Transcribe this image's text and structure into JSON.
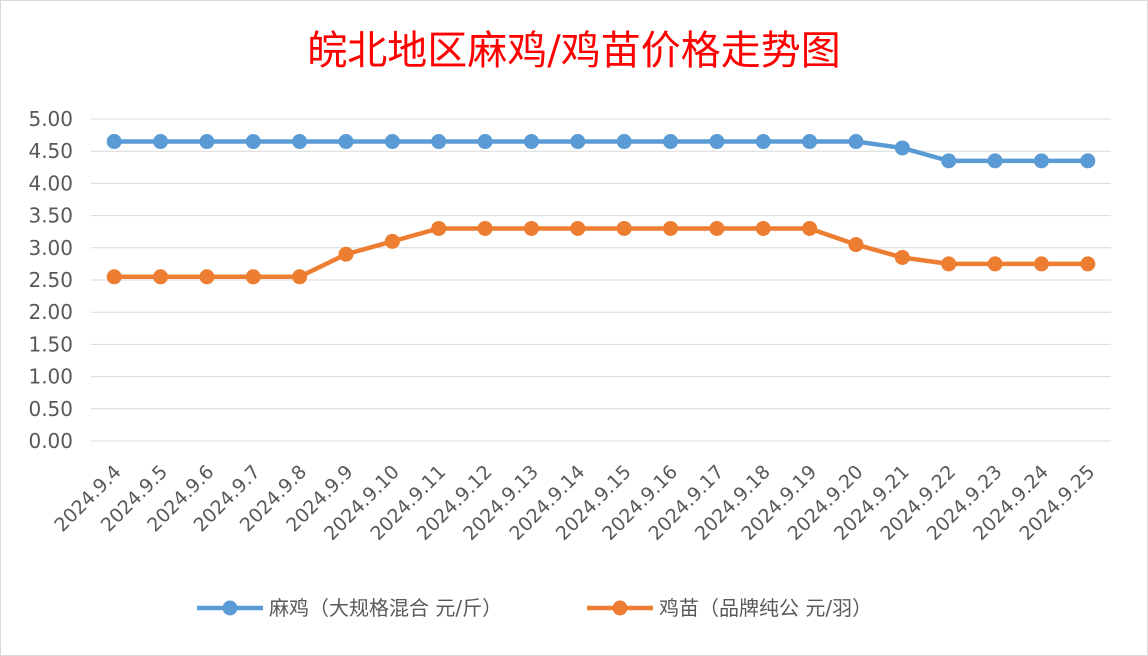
{
  "chart_data": {
    "type": "line",
    "title": "皖北地区麻鸡/鸡苗价格走势图",
    "categories": [
      "2024.9.4",
      "2024.9.5",
      "2024.9.6",
      "2024.9.7",
      "2024.9.8",
      "2024.9.9",
      "2024.9.10",
      "2024.9.11",
      "2024.9.12",
      "2024.9.13",
      "2024.9.14",
      "2024.9.15",
      "2024.9.16",
      "2024.9.17",
      "2024.9.18",
      "2024.9.19",
      "2024.9.20",
      "2024.9.21",
      "2024.9.22",
      "2024.9.23",
      "2024.9.24",
      "2024.9.25"
    ],
    "series": [
      {
        "name": "麻鸡（大规格混合 元/斤）",
        "color": "#5b9bd5",
        "values": [
          4.65,
          4.65,
          4.65,
          4.65,
          4.65,
          4.65,
          4.65,
          4.65,
          4.65,
          4.65,
          4.65,
          4.65,
          4.65,
          4.65,
          4.65,
          4.65,
          4.65,
          4.55,
          4.35,
          4.35,
          4.35,
          4.35
        ]
      },
      {
        "name": "鸡苗（品牌纯公 元/羽）",
        "color": "#ed7d31",
        "values": [
          2.55,
          2.55,
          2.55,
          2.55,
          2.55,
          2.9,
          3.1,
          3.3,
          3.3,
          3.3,
          3.3,
          3.3,
          3.3,
          3.3,
          3.3,
          3.3,
          3.05,
          2.85,
          2.75,
          2.75,
          2.75,
          2.75
        ]
      }
    ],
    "yticks": [
      "0.00",
      "0.50",
      "1.00",
      "1.50",
      "2.00",
      "2.50",
      "3.00",
      "3.50",
      "4.00",
      "4.50",
      "5.00"
    ],
    "ylim": [
      0,
      5
    ],
    "grid": true,
    "legend_position": "bottom"
  }
}
